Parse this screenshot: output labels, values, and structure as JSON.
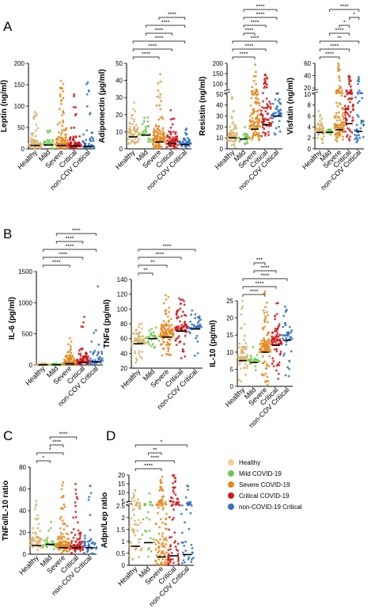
{
  "panel_letters": [
    "A",
    "B",
    "C",
    "D"
  ],
  "categories": [
    "Healthy",
    "Mild",
    "Severe",
    "Critical",
    "non-COV Critical"
  ],
  "colors": {
    "Healthy": "#d9b26a",
    "Mild": "#6cc94a",
    "Severe": "#e58a1f",
    "Critical": "#d01818",
    "non-COV Critical": "#2f6fc4",
    "axis": "#000000"
  },
  "legend": {
    "entries": [
      {
        "label": "Healthy",
        "color": "#f3cf92"
      },
      {
        "label": "Mild COVID-19",
        "color": "#6cc94a"
      },
      {
        "label": "Severe COVID-19",
        "color": "#e58a1f"
      },
      {
        "label": "Critical COVID-19",
        "color": "#d01818"
      },
      {
        "label": "non-COVID-19 Critical",
        "color": "#2f6fc4"
      }
    ]
  },
  "chart_data": [
    {
      "type": "scatter",
      "panel": "A",
      "ylabel": "Leptin (ng/ml)",
      "categories": [
        "Healthy",
        "Mild",
        "Severe",
        "Critical",
        "non-COV Critical"
      ],
      "yticks": [
        0,
        50,
        100,
        150,
        200
      ],
      "ylim": [
        0,
        200
      ],
      "medians": [
        8,
        9,
        8,
        7,
        6
      ],
      "spread": [
        [
          0,
          90
        ],
        [
          0,
          60
        ],
        [
          0,
          160
        ],
        [
          0,
          130
        ],
        [
          0,
          185
        ]
      ],
      "n": [
        60,
        25,
        110,
        70,
        40
      ],
      "significance": []
    },
    {
      "type": "scatter",
      "panel": "A",
      "ylabel": "Adiponectin (µg/ml)",
      "categories": [
        "Healthy",
        "Mild",
        "Severe",
        "Critical",
        "non-COV Critical"
      ],
      "yticks": [
        0,
        10,
        20,
        30,
        40,
        50
      ],
      "ylim": [
        0,
        50
      ],
      "medians": [
        7,
        8,
        4,
        3,
        2.5
      ],
      "spread": [
        [
          0,
          30
        ],
        [
          2,
          20
        ],
        [
          0,
          45
        ],
        [
          0,
          27
        ],
        [
          0,
          13
        ]
      ],
      "n": [
        60,
        25,
        110,
        70,
        40
      ],
      "significance": [
        {
          "from": 0,
          "to": 2,
          "label": "****"
        },
        {
          "from": 0,
          "to": 3,
          "label": "****"
        },
        {
          "from": 0,
          "to": 4,
          "label": "****"
        },
        {
          "from": 1,
          "to": 3,
          "label": "****"
        },
        {
          "from": 1,
          "to": 4,
          "label": "****"
        },
        {
          "from": 2,
          "to": 4,
          "label": "****"
        }
      ]
    },
    {
      "type": "scatter",
      "panel": "A",
      "ylabel": "Resistin (ng/ml)",
      "categories": [
        "Healthy",
        "Mild",
        "Severe",
        "Critical",
        "non-COV Critical"
      ],
      "yticks": [
        0,
        10,
        20,
        30,
        40,
        50,
        100,
        150,
        200
      ],
      "ylim": [
        0,
        200
      ],
      "axis_break": true,
      "medians": [
        10,
        9,
        18,
        22,
        30
      ],
      "spread": [
        [
          0,
          50
        ],
        [
          4,
          20
        ],
        [
          2,
          200
        ],
        [
          5,
          150
        ],
        [
          5,
          55
        ]
      ],
      "n": [
        60,
        25,
        110,
        70,
        40
      ],
      "significance": [
        {
          "from": 0,
          "to": 2,
          "label": "****"
        },
        {
          "from": 0,
          "to": 3,
          "label": "****"
        },
        {
          "from": 0,
          "to": 4,
          "label": "****"
        },
        {
          "from": 1,
          "to": 2,
          "label": "****"
        },
        {
          "from": 1,
          "to": 3,
          "label": "****"
        },
        {
          "from": 1,
          "to": 4,
          "label": "****"
        },
        {
          "from": 1,
          "to": 4,
          "label": "****"
        }
      ]
    },
    {
      "type": "scatter",
      "panel": "A",
      "ylabel": "Visfatin (ng/ml)",
      "categories": [
        "Healthy",
        "Mild",
        "Severe",
        "Critical",
        "non-COV Critical"
      ],
      "yticks": [
        0,
        2,
        4,
        6,
        8,
        10,
        20,
        40,
        60
      ],
      "ylim": [
        0,
        60
      ],
      "axis_break": true,
      "medians": [
        3,
        3,
        3.5,
        4.6,
        3.2
      ],
      "spread": [
        [
          1,
          7
        ],
        [
          2.5,
          3.5
        ],
        [
          1,
          60
        ],
        [
          1,
          50
        ],
        [
          1,
          40
        ]
      ],
      "n": [
        60,
        25,
        110,
        70,
        40
      ],
      "significance": [
        {
          "from": 0,
          "to": 2,
          "label": "****"
        },
        {
          "from": 0,
          "to": 3,
          "label": "****"
        },
        {
          "from": 0,
          "to": 4,
          "label": "**"
        },
        {
          "from": 1,
          "to": 3,
          "label": "****"
        },
        {
          "from": 2,
          "to": 3,
          "label": "*"
        },
        {
          "from": 3,
          "to": 4,
          "label": "*"
        },
        {
          "from": 1,
          "to": 4,
          "label": "****"
        }
      ]
    },
    {
      "type": "scatter",
      "panel": "B",
      "ylabel": "IL-6 (pg/ml)",
      "categories": [
        "Healthy",
        "Mild",
        "Severe",
        "Critical",
        "non-COV Critical"
      ],
      "yticks": [
        0,
        500,
        1000,
        1500
      ],
      "ylim": [
        0,
        1500
      ],
      "medians": [
        3,
        5,
        20,
        40,
        50
      ],
      "spread": [
        [
          0,
          30
        ],
        [
          0,
          40
        ],
        [
          0,
          450
        ],
        [
          0,
          800
        ],
        [
          0,
          1400
        ]
      ],
      "n": [
        60,
        25,
        110,
        70,
        40
      ],
      "significance": [
        {
          "from": 0,
          "to": 2,
          "label": "****"
        },
        {
          "from": 0,
          "to": 3,
          "label": "****"
        },
        {
          "from": 0,
          "to": 4,
          "label": "****"
        },
        {
          "from": 1,
          "to": 3,
          "label": "****"
        },
        {
          "from": 1,
          "to": 4,
          "label": "****"
        }
      ]
    },
    {
      "type": "scatter",
      "panel": "B",
      "ylabel": "TNFα (pg/ml)",
      "categories": [
        "Healthy",
        "Mild",
        "Severe",
        "Critical",
        "non-COV Critical"
      ],
      "yticks": [
        20,
        40,
        60,
        80,
        100,
        120,
        140
      ],
      "ylim": [
        20,
        140
      ],
      "medians": [
        53,
        60,
        62,
        70,
        73
      ],
      "spread": [
        [
          20,
          80
        ],
        [
          45,
          78
        ],
        [
          25,
          120
        ],
        [
          30,
          115
        ],
        [
          25,
          100
        ]
      ],
      "n": [
        60,
        25,
        110,
        70,
        40
      ],
      "significance": [
        {
          "from": 0,
          "to": 1,
          "label": "**"
        },
        {
          "from": 0,
          "to": 2,
          "label": "**"
        },
        {
          "from": 0,
          "to": 3,
          "label": "****"
        },
        {
          "from": 0,
          "to": 4,
          "label": "****"
        }
      ]
    },
    {
      "type": "scatter",
      "panel": "B",
      "ylabel": "IL-10 (pg/ml)",
      "categories": [
        "Healthy",
        "Mild",
        "Severe",
        "Critical",
        "non-COV Critical"
      ],
      "yticks": [
        0,
        5,
        10,
        15,
        20,
        25
      ],
      "ylim": [
        0,
        25
      ],
      "medians": [
        7.5,
        7,
        10,
        12,
        13.5
      ],
      "spread": [
        [
          0,
          25
        ],
        [
          3,
          12
        ],
        [
          0,
          28
        ],
        [
          0,
          25
        ],
        [
          0,
          25
        ]
      ],
      "n": [
        60,
        25,
        110,
        70,
        40
      ],
      "significance": [
        {
          "from": 0,
          "to": 2,
          "label": "****"
        },
        {
          "from": 0,
          "to": 3,
          "label": "****"
        },
        {
          "from": 0,
          "to": 4,
          "label": "****"
        },
        {
          "from": 1,
          "to": 3,
          "label": "****"
        },
        {
          "from": 1,
          "to": 2,
          "label": "***"
        }
      ]
    },
    {
      "type": "scatter",
      "panel": "C",
      "ylabel": "TNFα/IL-10 ratio",
      "categories": [
        "Healthy",
        "Mild",
        "Severe",
        "Critical",
        "non-COV Critical"
      ],
      "yticks": [
        0,
        20,
        40,
        60,
        80
      ],
      "ylim": [
        0,
        80
      ],
      "medians": [
        8,
        9,
        6,
        6,
        6
      ],
      "spread": [
        [
          2,
          50
        ],
        [
          4,
          30
        ],
        [
          1,
          75
        ],
        [
          1,
          68
        ],
        [
          0,
          65
        ]
      ],
      "n": [
        60,
        25,
        110,
        70,
        40
      ],
      "significance": [
        {
          "from": 0,
          "to": 1,
          "label": "*"
        },
        {
          "from": 0,
          "to": 2,
          "label": "*"
        },
        {
          "from": 1,
          "to": 2,
          "label": "****"
        },
        {
          "from": 1,
          "to": 3,
          "label": "****"
        }
      ]
    },
    {
      "type": "scatter",
      "panel": "D",
      "ylabel": "Adpn/Lep ratio",
      "categories": [
        "Healthy",
        "Mild",
        "Severe",
        "Critical",
        "non-COV Critical"
      ],
      "yticks": [
        0.0,
        0.5,
        1.0,
        1.5,
        2.0,
        2.5,
        5,
        10,
        15,
        20
      ],
      "ylim": [
        0,
        20
      ],
      "axis_break": true,
      "medians": [
        0.8,
        0.95,
        0.35,
        0.4,
        0.45
      ],
      "spread": [
        [
          0,
          15
        ],
        [
          0.1,
          12
        ],
        [
          0,
          20
        ],
        [
          0,
          20
        ],
        [
          0,
          20
        ]
      ],
      "n": [
        60,
        25,
        110,
        70,
        40
      ],
      "significance": [
        {
          "from": 0,
          "to": 2,
          "label": "****"
        },
        {
          "from": 0,
          "to": 3,
          "label": "****"
        },
        {
          "from": 1,
          "to": 2,
          "label": "**"
        },
        {
          "from": 0,
          "to": 4,
          "label": "*"
        }
      ]
    }
  ]
}
